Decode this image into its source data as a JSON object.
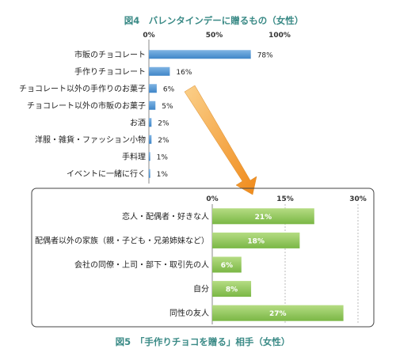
{
  "chart_data": [
    {
      "type": "bar",
      "orientation": "horizontal",
      "title": "図4　バレンタインデーに贈るもの（女性）",
      "categories": [
        "市販のチョコレート",
        "手作りチョコレート",
        "チョコレート以外の手作りのお菓子",
        "チョコレート以外の市販のお菓子",
        "お酒",
        "洋服・雑貨・ファッション小物",
        "手料理",
        "イベントに一緒に行く"
      ],
      "values": [
        78,
        16,
        6,
        5,
        2,
        2,
        1,
        1
      ],
      "value_labels": [
        "78%",
        "16%",
        "6%",
        "5%",
        "2%",
        "2%",
        "1%",
        "1%"
      ],
      "xlim": [
        0,
        100
      ],
      "ticks": [
        "0%",
        "50%",
        "100%"
      ],
      "tick_values": [
        0,
        50,
        100
      ],
      "grid": false,
      "colors": {
        "bar": "#5b9bd5",
        "title": "#3a8a86"
      }
    },
    {
      "type": "bar",
      "orientation": "horizontal",
      "title": "図5　「手作りチョコを贈る」相手（女性）",
      "categories": [
        "恋人・配偶者・好きな人",
        "配偶者以外の家族（親・子ども・兄弟姉妹など）",
        "会社の同僚・上司・部下・取引先の人",
        "自分",
        "同性の友人"
      ],
      "values": [
        21,
        18,
        6,
        8,
        27
      ],
      "value_labels": [
        "21%",
        "18%",
        "6%",
        "8%",
        "27%"
      ],
      "xlim": [
        0,
        30
      ],
      "ticks": [
        "0%",
        "15%",
        "30%"
      ],
      "tick_values": [
        0,
        15,
        30
      ],
      "grid": true,
      "colors": {
        "bar": "#8cc152",
        "title": "#3a8a86",
        "frame": "#444444",
        "arrow": "#f0a030"
      }
    }
  ]
}
